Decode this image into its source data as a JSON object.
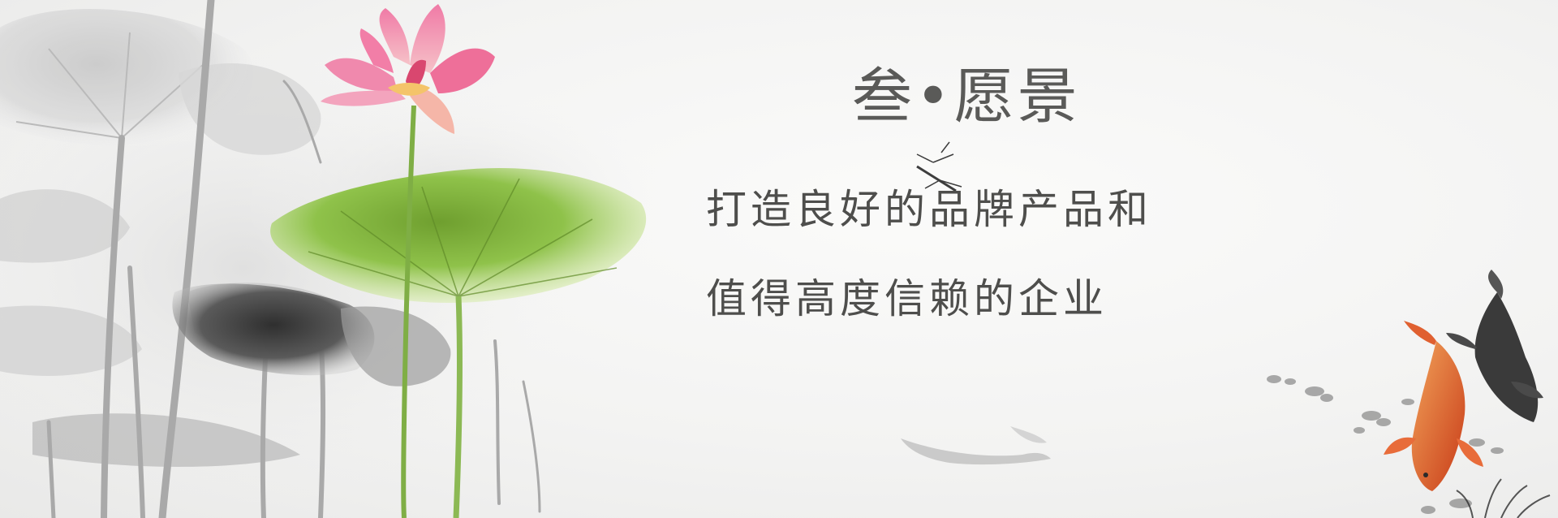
{
  "banner": {
    "heading": "叁•愿景",
    "line1": "打造良好的品牌产品和",
    "line2": "值得高度信赖的企业"
  },
  "colors": {
    "background": "#f4f4f3",
    "text": "#4e4e4c",
    "lotus_petal": "#e8608e",
    "lotus_leaf": "#8fc24a",
    "koi_red": "#d9481f",
    "ink": "#3a3a3a"
  }
}
